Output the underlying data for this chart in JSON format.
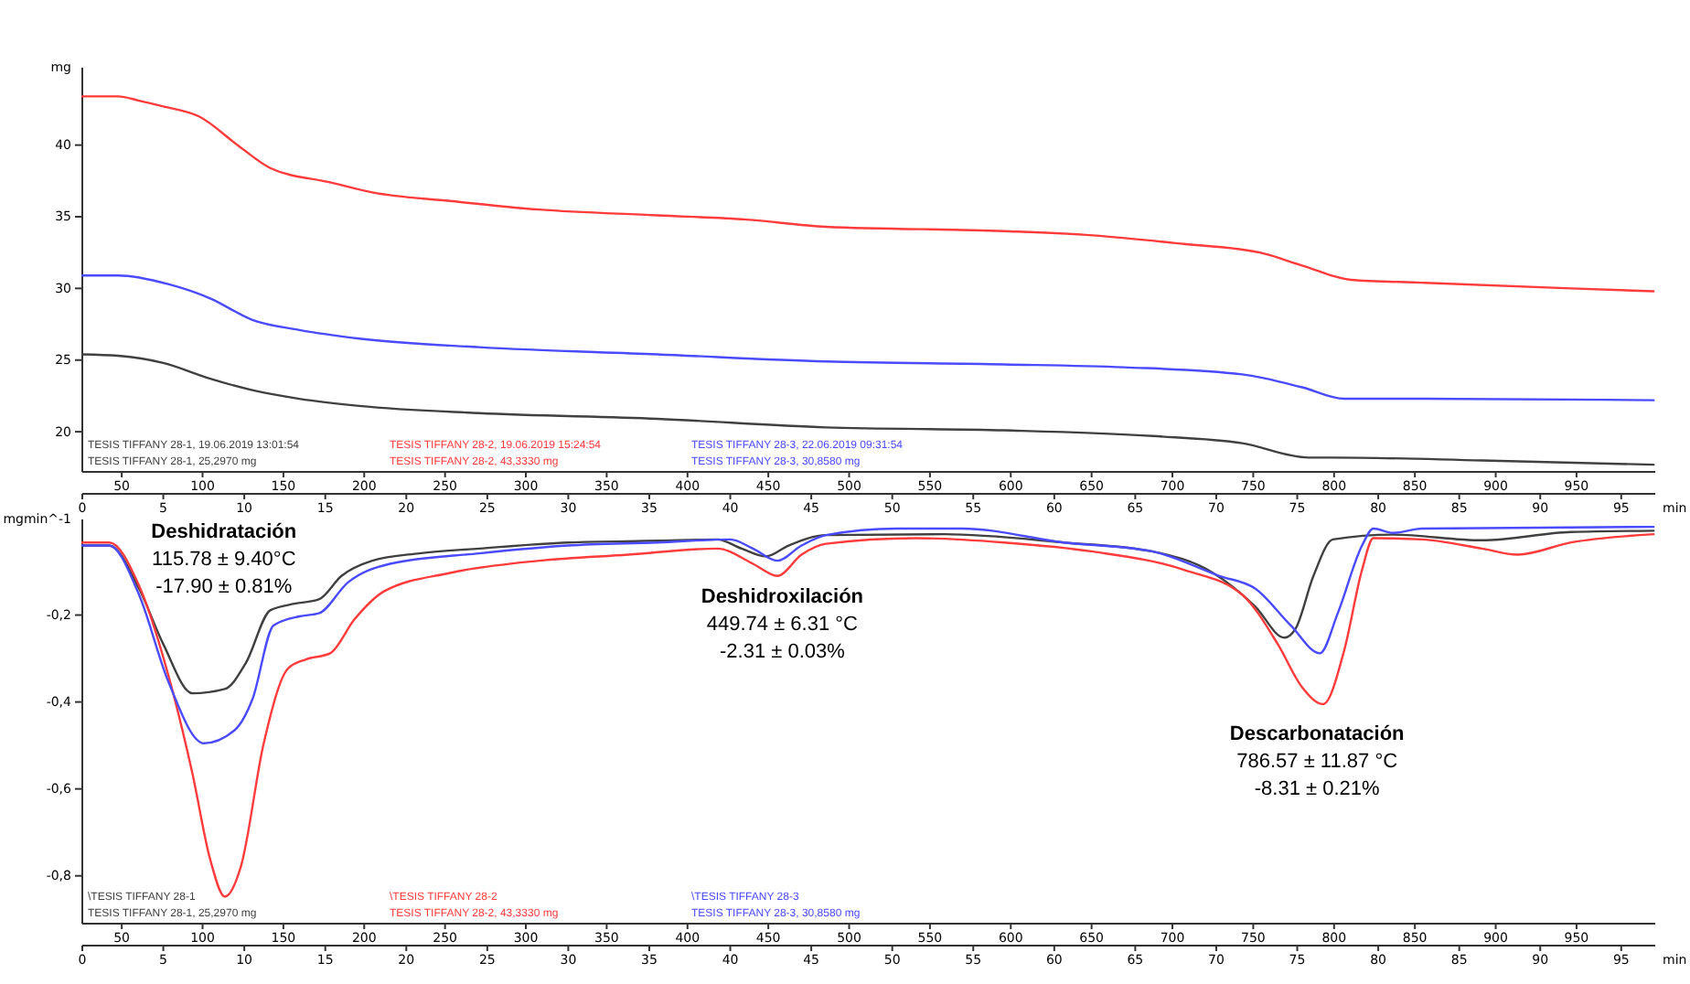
{
  "chart_data": [
    {
      "type": "line",
      "ylabel": "mg",
      "xlabel": "min",
      "xlim": [
        0,
        97.1
      ],
      "xticks": [
        0,
        5,
        10,
        15,
        20,
        25,
        30,
        35,
        40,
        45,
        50,
        55,
        60,
        65,
        70,
        75,
        80,
        85,
        90,
        95
      ],
      "x2lim": [
        25.6,
        998.7
      ],
      "x2ticks": [
        50,
        100,
        150,
        200,
        250,
        300,
        350,
        400,
        450,
        500,
        550,
        600,
        650,
        700,
        750,
        800,
        850,
        900,
        950
      ],
      "ylim": [
        17.2,
        45.4
      ],
      "yticks": [
        20,
        25,
        30,
        35,
        40
      ],
      "grid": false,
      "legend": "bottom left",
      "series": [
        {
          "name": "TESIS TIFFANY 28-1, 19.06.2019 13:01:54\nTESIS TIFFANY 28-1, 25,2970 mg",
          "color": "#404040",
          "x": [
            0,
            2.2,
            5.0,
            7.9,
            10.5,
            13.4,
            17.1,
            24.5,
            35.5,
            45.9,
            56.9,
            66.1,
            71.6,
            75.7,
            77.2,
            86.4,
            97
          ],
          "values": [
            25.4,
            25.3,
            24.8,
            23.7,
            22.9,
            22.3,
            21.8,
            21.3,
            20.9,
            20.3,
            20.1,
            19.7,
            19.2,
            18.2,
            18.2,
            18.0,
            17.7
          ]
        },
        {
          "name": "TESIS TIFFANY 28-2, 19.06.2019 15:24:54\nTESIS TIFFANY 28-2, 43,3330 mg",
          "color": "#ff3b3b",
          "x": [
            0,
            2.2,
            3.5,
            5.0,
            7.2,
            9.7,
            11.6,
            15.3,
            17.9,
            22.7,
            28.2,
            35.5,
            41.0,
            45.9,
            56.9,
            62.4,
            68.0,
            72.7,
            75.3,
            78.3,
            82.7,
            91.9,
            97
          ],
          "values": [
            43.4,
            43.4,
            43.1,
            42.7,
            42.0,
            39.9,
            38.4,
            37.4,
            36.7,
            36.1,
            35.5,
            35.1,
            34.8,
            34.3,
            34.0,
            33.7,
            33.1,
            32.5,
            31.6,
            30.6,
            30.4,
            30.0,
            29.8
          ]
        },
        {
          "name": "TESIS TIFFANY 28-3, 22.06.2019 09:31:54\nTESIS TIFFANY 28-3, 30,8580 mg",
          "color": "#4a4aff",
          "x": [
            0,
            2.2,
            5.3,
            7.9,
            10.5,
            13.4,
            17.1,
            24.5,
            35.5,
            45.9,
            56.9,
            64.3,
            71.6,
            75.3,
            77.9,
            82.7,
            97
          ],
          "values": [
            30.9,
            30.9,
            30.3,
            29.3,
            27.8,
            27.1,
            26.5,
            25.9,
            25.4,
            24.9,
            24.7,
            24.5,
            24.0,
            23.1,
            22.3,
            22.3,
            22.2
          ]
        }
      ]
    },
    {
      "type": "line",
      "ylabel": "mgmin^-1",
      "xlabel": "min",
      "xlim": [
        0,
        97.1
      ],
      "xticks": [
        0,
        5,
        10,
        15,
        20,
        25,
        30,
        35,
        40,
        45,
        50,
        55,
        60,
        65,
        70,
        75,
        80,
        85,
        90,
        95
      ],
      "x2lim": [
        25.6,
        998.7
      ],
      "x2ticks": [
        50,
        100,
        150,
        200,
        250,
        300,
        350,
        400,
        450,
        500,
        550,
        600,
        650,
        700,
        750,
        800,
        850,
        900,
        950
      ],
      "ylim": [
        -0.91,
        0.02
      ],
      "yticks": [
        {
          "value": -0.2,
          "label": "-0,2"
        },
        {
          "value": -0.4,
          "label": "-0,4"
        },
        {
          "value": -0.6,
          "label": "-0,6"
        },
        {
          "value": -0.8,
          "label": "-0,8"
        }
      ],
      "grid": false,
      "legend": "bottom left",
      "annotations": [
        "Deshidratación\n115.78 ± 9.40°C\n-17.90 ± 0.81%",
        "Deshidroxilación\n449.74 ± 6.31 °C\n-2.31 ± 0.03%",
        "Descarbonatación\n786.57 ± 11.87 °C\n-8.31 ± 0.21%"
      ],
      "series": [
        {
          "name": "\\TESIS TIFFANY 28-1\nTESIS TIFFANY 28-1, 25,2970 mg",
          "color": "#404040",
          "x": [
            0,
            1.66,
            3.5,
            5.0,
            6.8,
            8.8,
            10.1,
            11.6,
            13.1,
            14.6,
            16.0,
            17.9,
            20.8,
            24.5,
            30.0,
            35.5,
            39.2,
            40.7,
            42.2,
            43.6,
            45.9,
            53.2,
            60.6,
            66.1,
            69.8,
            72.4,
            74.2,
            74.9,
            76.0,
            77.2,
            80.9,
            86.4,
            91.9,
            97.0
          ],
          "values": [
            -0.04,
            -0.04,
            -0.139,
            -0.267,
            -0.38,
            -0.37,
            -0.31,
            -0.189,
            -0.174,
            -0.164,
            -0.11,
            -0.075,
            -0.058,
            -0.047,
            -0.033,
            -0.029,
            -0.026,
            -0.047,
            -0.065,
            -0.04,
            -0.016,
            -0.014,
            -0.033,
            -0.054,
            -0.103,
            -0.18,
            -0.252,
            -0.231,
            -0.11,
            -0.026,
            -0.015,
            -0.028,
            -0.009,
            -0.006
          ]
        },
        {
          "name": "\\TESIS TIFFANY 28-2\nTESIS TIFFANY 28-2, 43,3330 mg",
          "color": "#ff3b3b",
          "x": [
            0,
            1.66,
            3.5,
            5.3,
            6.8,
            7.9,
            8.8,
            9.8,
            11.2,
            12.7,
            13.8,
            15.3,
            16.8,
            18.6,
            22.7,
            28.2,
            33.7,
            39.2,
            41.4,
            42.9,
            44.4,
            45.9,
            51.4,
            56.9,
            62.4,
            68.0,
            71.6,
            73.8,
            75.3,
            76.6,
            77.9,
            79.0,
            79.7,
            82.7,
            86.4,
            88.6,
            91.9,
            97.0
          ],
          "values": [
            -0.033,
            -0.033,
            -0.132,
            -0.337,
            -0.565,
            -0.763,
            -0.848,
            -0.777,
            -0.495,
            -0.323,
            -0.302,
            -0.288,
            -0.21,
            -0.146,
            -0.103,
            -0.075,
            -0.061,
            -0.047,
            -0.082,
            -0.11,
            -0.061,
            -0.036,
            -0.023,
            -0.033,
            -0.054,
            -0.096,
            -0.153,
            -0.267,
            -0.366,
            -0.405,
            -0.281,
            -0.096,
            -0.023,
            -0.026,
            -0.047,
            -0.061,
            -0.033,
            -0.014
          ]
        },
        {
          "name": "\\TESIS TIFFANY 28-3\nTESIS TIFFANY 28-3, 30,8580 mg",
          "color": "#4a4aff",
          "x": [
            0,
            1.66,
            3.5,
            5.3,
            7.5,
            9.4,
            10.5,
            11.8,
            13.4,
            14.6,
            16.4,
            19.0,
            24.5,
            30.0,
            35.5,
            40.0,
            41.4,
            42.9,
            44.4,
            45.9,
            50.3,
            54.3,
            60.6,
            66.1,
            70.2,
            72.4,
            74.6,
            76.4,
            77.5,
            79.0,
            79.7,
            80.9,
            82.7,
            97.0
          ],
          "values": [
            -0.04,
            -0.04,
            -0.153,
            -0.352,
            -0.495,
            -0.465,
            -0.394,
            -0.224,
            -0.203,
            -0.196,
            -0.125,
            -0.082,
            -0.058,
            -0.04,
            -0.033,
            -0.026,
            -0.047,
            -0.075,
            -0.04,
            -0.016,
            -0.001,
            -0.001,
            -0.033,
            -0.054,
            -0.11,
            -0.139,
            -0.224,
            -0.288,
            -0.196,
            -0.04,
            -0.001,
            -0.011,
            -0.001,
            0.003
          ]
        }
      ]
    }
  ]
}
